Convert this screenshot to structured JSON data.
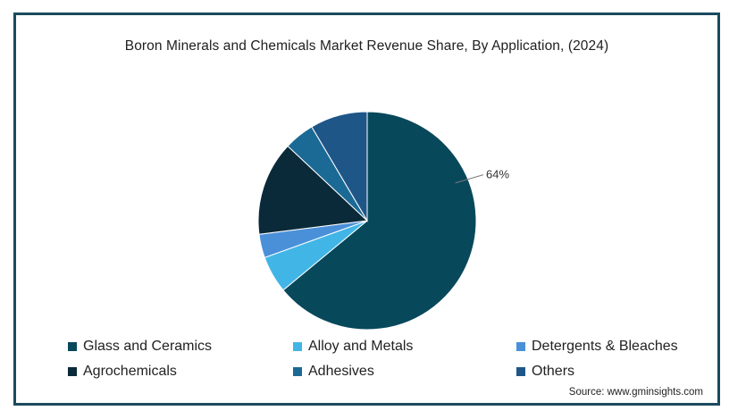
{
  "chart_data": {
    "type": "pie",
    "title": "Boron Minerals and Chemicals Market Revenue Share, By  Application,  (2024)",
    "categories": [
      "Glass and Ceramics",
      "Alloy and Metals",
      "Detergents & Bleaches",
      "Agrochemicals",
      "Adhesives",
      "Others"
    ],
    "values": [
      64,
      5.5,
      3.5,
      14,
      4.5,
      8.5
    ],
    "colors": [
      "#08485b",
      "#41b6e6",
      "#4a90d9",
      "#0b2a39",
      "#1b6a96",
      "#1f5688"
    ],
    "data_labels": [
      "64%",
      "",
      "",
      "",
      "",
      ""
    ],
    "legend_position": "bottom",
    "start_angle_deg": 0
  },
  "source": "Source: www.gminsights.com"
}
